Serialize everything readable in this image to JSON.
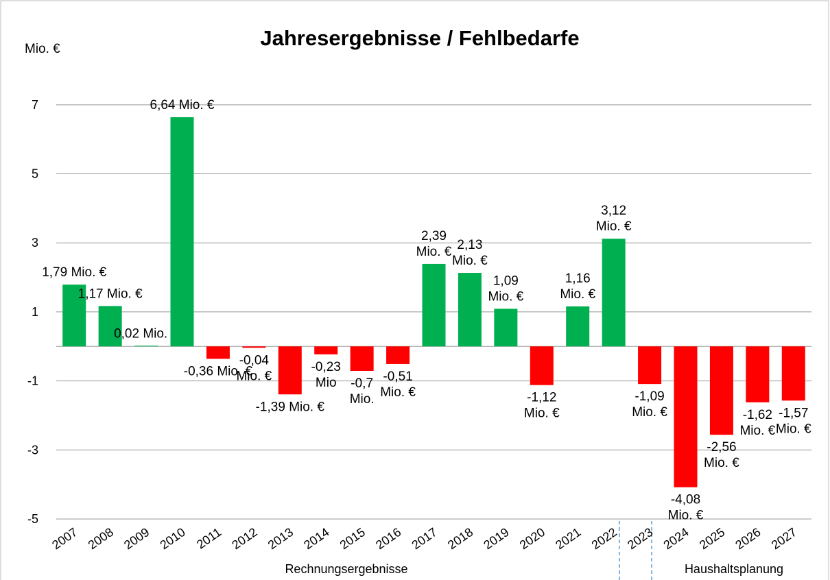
{
  "chart_data": {
    "type": "bar",
    "title": "Jahresergebnisse  / Fehlbedarfe",
    "y_axis_label": "Mio. €",
    "categories": [
      "2007",
      "2008",
      "2009",
      "2010",
      "2011",
      "2012",
      "2013",
      "2014",
      "2015",
      "2016",
      "2017",
      "2018",
      "2019",
      "2020",
      "2021",
      "2022",
      "2023",
      "2024",
      "2025",
      "2026",
      "2027"
    ],
    "values": [
      1.79,
      1.17,
      0.02,
      6.64,
      -0.36,
      -0.04,
      -1.39,
      -0.23,
      -0.71,
      -0.51,
      2.39,
      2.13,
      1.09,
      -1.12,
      1.16,
      3.12,
      -1.09,
      -4.08,
      -2.56,
      -1.62,
      -1.57
    ],
    "value_labels": [
      [
        "1,79 Mio. €"
      ],
      [
        "1,17 Mio. €"
      ],
      [
        "0,02 Mio. €"
      ],
      [
        "6,64 Mio. €"
      ],
      [
        "-0,36 Mio. €"
      ],
      [
        "-0,04",
        "Mio. €"
      ],
      [
        "-1,39 Mio. €"
      ],
      [
        "-0,23",
        "Mio"
      ],
      [
        "-0,7",
        "Mio."
      ],
      [
        "-0,51",
        "Mio. €"
      ],
      [
        "2,39",
        "Mio. €"
      ],
      [
        "2,13",
        "Mio. €"
      ],
      [
        "1,09",
        "Mio. €"
      ],
      [
        "-1,12",
        "Mio. €"
      ],
      [
        "1,16",
        "Mio. €"
      ],
      [
        "3,12",
        "Mio. €"
      ],
      [
        "-1,09",
        "Mio. €"
      ],
      [
        "-4,08",
        "Mio. €"
      ],
      [
        "-2,56",
        "Mio. €"
      ],
      [
        "-1,62",
        "Mio. €"
      ],
      [
        "-1,57",
        "Mio. €"
      ]
    ],
    "positive_color": "#00b050",
    "negative_color": "#ff0000",
    "ylim": [
      -5,
      8
    ],
    "yticks": [
      -5,
      -3,
      -1,
      1,
      3,
      5,
      7
    ],
    "grid": true,
    "groups": [
      "Rechnungsergebnisse",
      "Haushaltsplanung"
    ]
  }
}
